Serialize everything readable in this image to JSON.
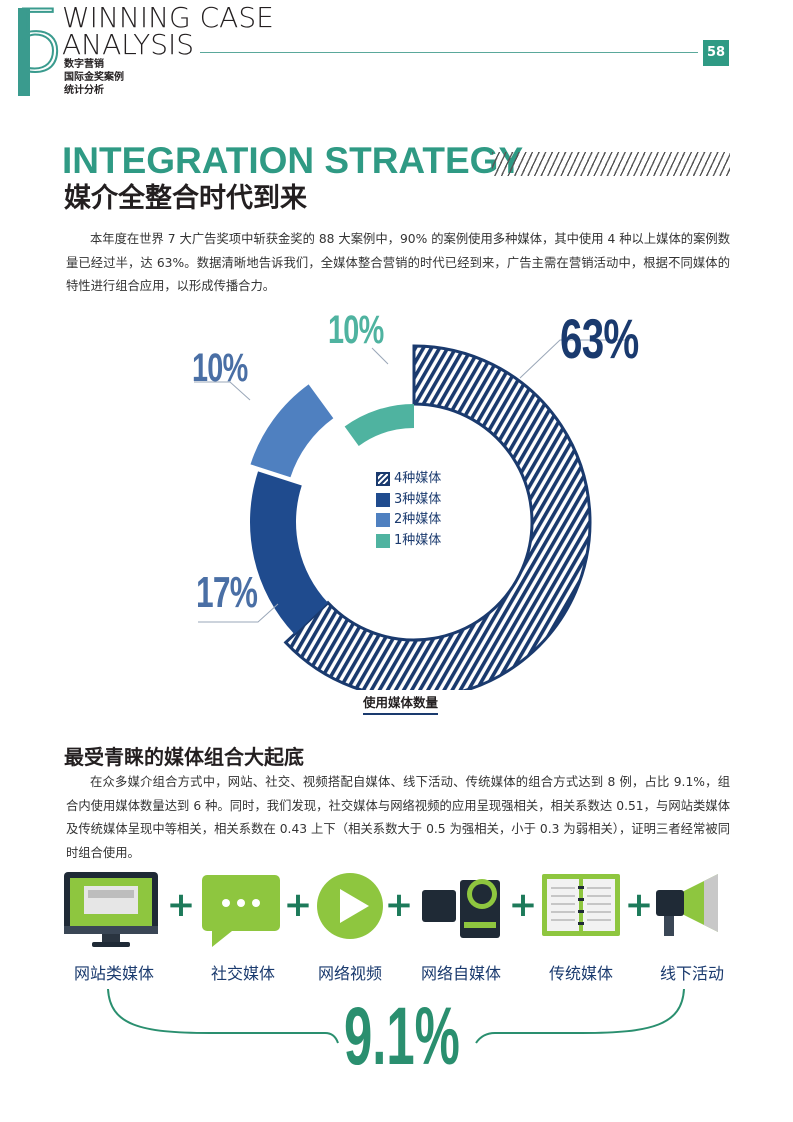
{
  "header": {
    "chapter_number": "5",
    "title_line1": "WINNING CASE",
    "title_line2": "ANALYSIS",
    "subtitle_lines": [
      "数字营销",
      "国际金奖案例",
      "统计分析"
    ],
    "page_number": "58"
  },
  "section": {
    "title_en": "INTEGRATION STRATEGY",
    "title_cn": "媒介全整合时代到来",
    "intro": "本年度在世界 7 大广告奖项中斩获金奖的 88 大案例中，90% 的案例使用多种媒体，其中使用 4 种以上媒体的案例数量已经过半，达 63%。数据清晰地告诉我们，全媒体整合营销的时代已经到来，广告主需在营销活动中，根据不同媒体的特性进行组合应用，以形成传播合力。"
  },
  "chart_data": {
    "type": "pie",
    "title": "",
    "xlabel": "使用媒体数量",
    "slices": [
      {
        "name": "4种媒体",
        "value": 63,
        "label": "63%",
        "color": "#1a3a6e",
        "pattern": "hatched"
      },
      {
        "name": "3种媒体",
        "value": 17,
        "label": "17%",
        "color": "#1f4b8e",
        "pattern": "solid"
      },
      {
        "name": "2种媒体",
        "value": 10,
        "label": "10%",
        "color": "#4f80c0",
        "pattern": "solid",
        "exploded": true
      },
      {
        "name": "1种媒体",
        "value": 10,
        "label": "10%",
        "color": "#4fb3a0",
        "pattern": "solid"
      }
    ],
    "legend_position": "center"
  },
  "section2": {
    "title": "最受青睐的媒体组合大起底",
    "body": "在众多媒介组合方式中，网站、社交、视频搭配自媒体、线下活动、传统媒体的组合方式达到 8 例，占比 9.1%，组合内使用媒体数量达到 6 种。同时，我们发现，社交媒体与网络视频的应用呈现强相关，相关系数达 0.51，与网站类媒体及传统媒体呈现中等相关，相关系数在 0.43 上下（相关系数大于 0.5 为强相关，小于 0.3 为弱相关），证明三者经常被同时组合使用。",
    "combo": [
      {
        "label": "网站类媒体",
        "icon": "monitor-icon"
      },
      {
        "label": "社交媒体",
        "icon": "chat-bubble-icon"
      },
      {
        "label": "网络视频",
        "icon": "play-icon"
      },
      {
        "label": "网络自媒体",
        "icon": "video-camera-icon"
      },
      {
        "label": "传统媒体",
        "icon": "notebook-icon"
      },
      {
        "label": "线下活动",
        "icon": "megaphone-icon"
      }
    ],
    "plus": "+",
    "share": "9.1%"
  }
}
